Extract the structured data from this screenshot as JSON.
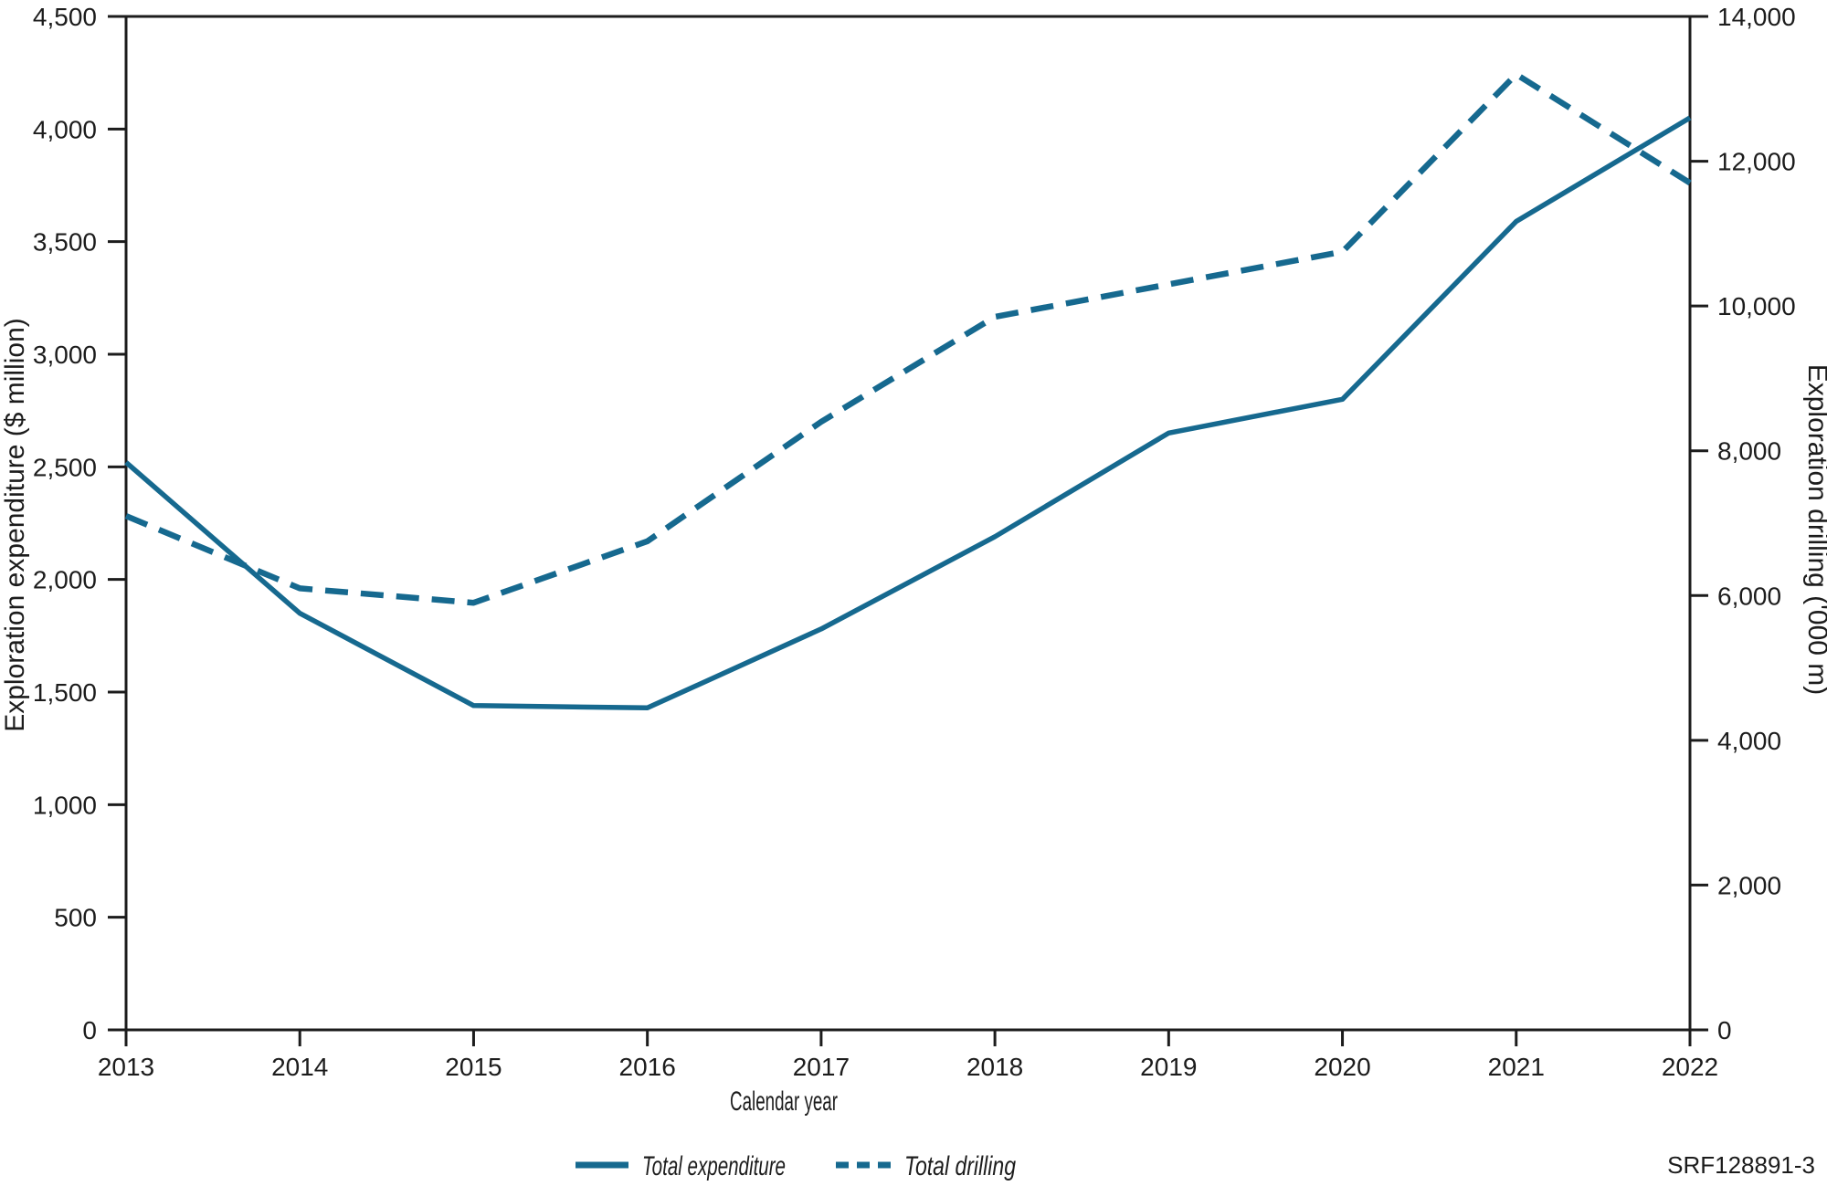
{
  "chart_data": {
    "type": "line",
    "title": "",
    "xlabel": "Calendar year",
    "ylabel_left": "Exploration expenditure ($ million)",
    "ylabel_right": "Exploration drilling ('000 m)",
    "x": [
      2013,
      2014,
      2015,
      2016,
      2017,
      2018,
      2019,
      2020,
      2021,
      2022
    ],
    "y_left_axis": {
      "min": 0,
      "max": 4500,
      "step": 500
    },
    "y_right_axis": {
      "min": 0,
      "max": 14000,
      "step": 2000
    },
    "series": [
      {
        "name": "Total expenditure",
        "axis": "left",
        "style": "solid",
        "values": [
          2520,
          1850,
          1440,
          1430,
          1780,
          2190,
          2650,
          2800,
          3590,
          4050
        ]
      },
      {
        "name": "Total drilling",
        "axis": "right",
        "style": "dashed",
        "values": [
          7100,
          6100,
          5900,
          6750,
          8400,
          9850,
          10300,
          10750,
          13200,
          11700
        ]
      }
    ],
    "line_color": "#16698f",
    "axis_color": "#1c1c1c",
    "grid": false,
    "legend_position": "bottom"
  },
  "legend": {
    "expenditure_label": "Total expenditure",
    "drilling_label": "Total drilling"
  },
  "footer": {
    "figure_code": "SRF128891-3"
  }
}
